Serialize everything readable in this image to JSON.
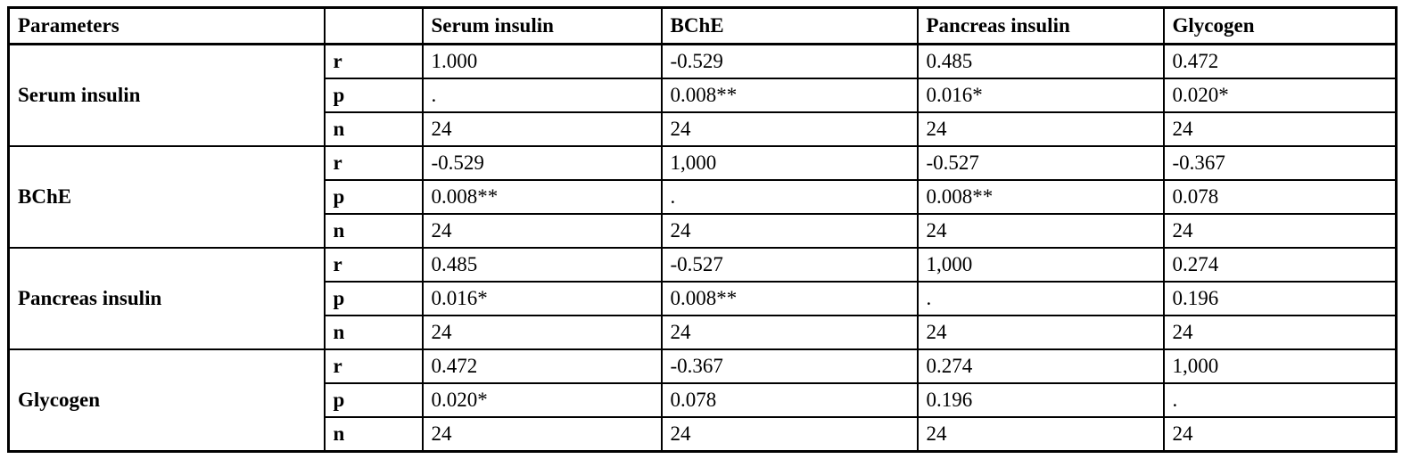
{
  "table": {
    "header": {
      "parameters_label": "Parameters",
      "stat_label": "",
      "columns": [
        "Serum insulin",
        "BChE",
        "Pancreas insulin",
        "Glycogen"
      ]
    },
    "stat_row_labels": [
      "r",
      "p",
      "n"
    ],
    "groups": [
      {
        "name": "Serum insulin",
        "r": [
          "1.000",
          "-0.529",
          "0.485",
          "0.472"
        ],
        "p": [
          ".",
          "0.008**",
          "0.016*",
          "0.020*"
        ],
        "n": [
          "24",
          "24",
          "24",
          "24"
        ]
      },
      {
        "name": "BChE",
        "r": [
          "-0.529",
          "1,000",
          "-0.527",
          "-0.367"
        ],
        "p": [
          "0.008**",
          ".",
          "0.008**",
          "0.078"
        ],
        "n": [
          "24",
          "24",
          "24",
          "24"
        ]
      },
      {
        "name": "Pancreas insulin",
        "r": [
          "0.485",
          "-0.527",
          "1,000",
          "0.274"
        ],
        "p": [
          "0.016*",
          "0.008**",
          ".",
          "0.196"
        ],
        "n": [
          "24",
          "24",
          "24",
          "24"
        ]
      },
      {
        "name": "Glycogen",
        "r": [
          "0.472",
          "-0.367",
          "0.274",
          "1,000"
        ],
        "p": [
          "0.020*",
          "0.078",
          "0.196",
          "."
        ],
        "n": [
          "24",
          "24",
          "24",
          "24"
        ]
      }
    ],
    "colors": {
      "border": "#000000",
      "background": "#ffffff",
      "text": "#000000"
    }
  }
}
